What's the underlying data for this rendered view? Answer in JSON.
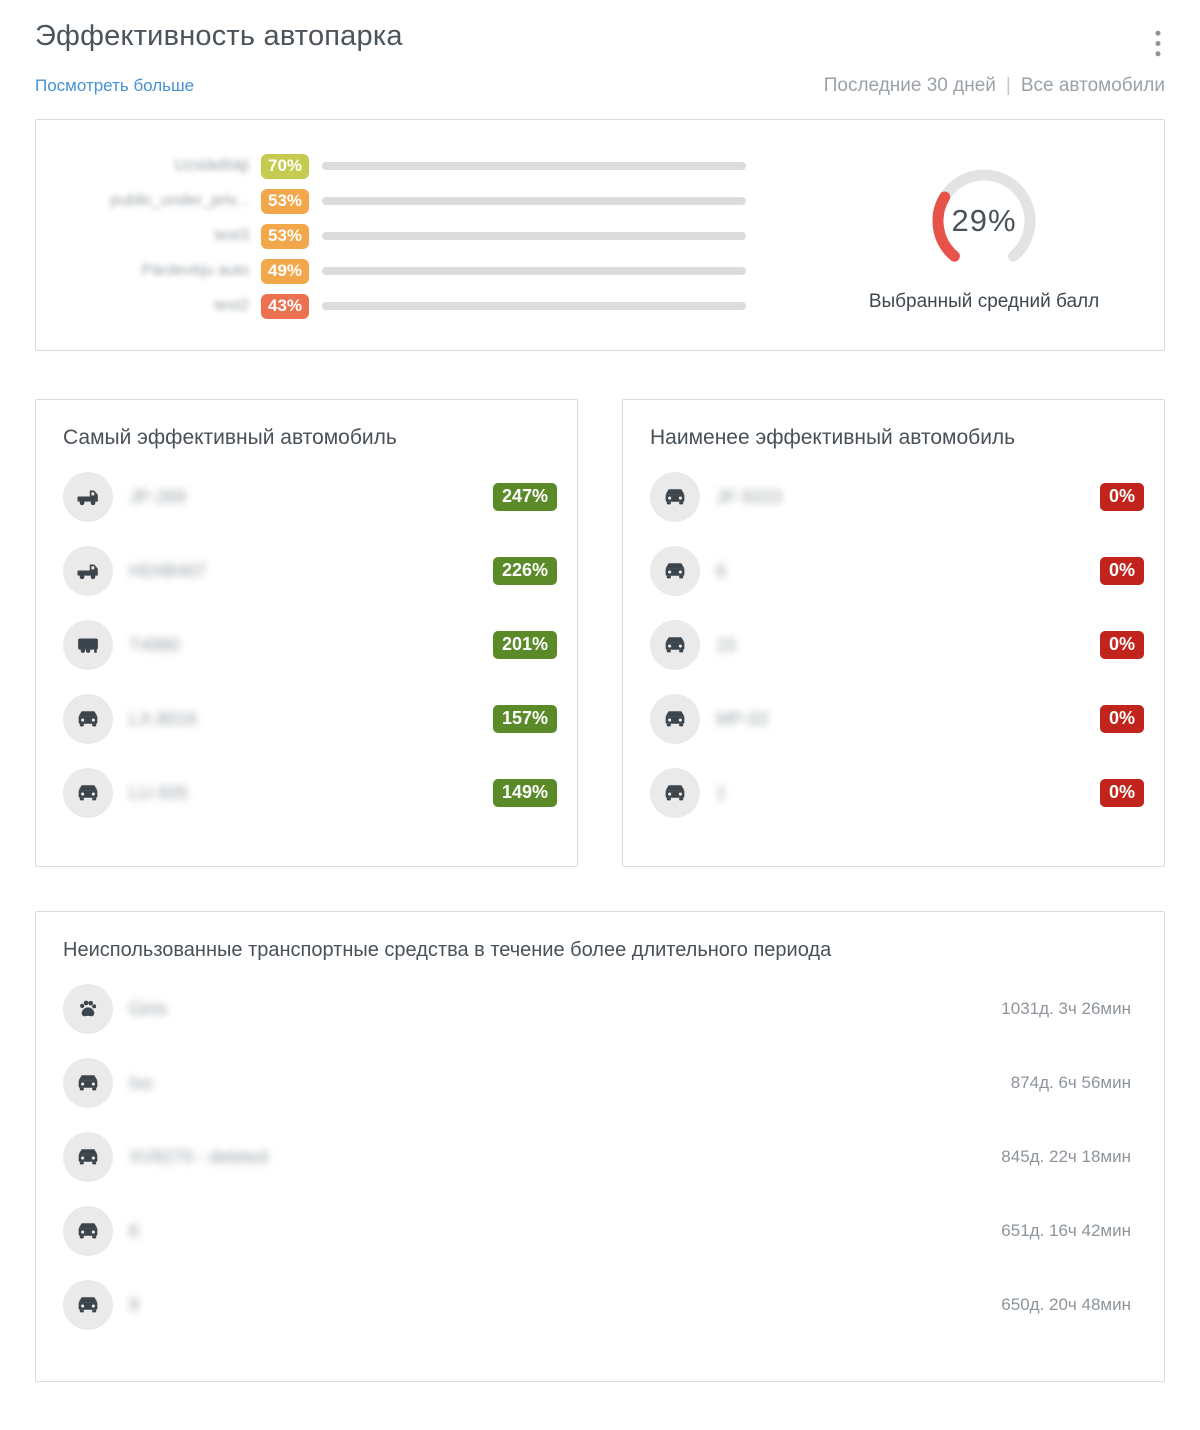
{
  "header": {
    "title": "Эффективность автопарка",
    "see_more": "Посмотреть больше",
    "period_filter": "Последние 30 дней",
    "separator": "|",
    "vehicle_filter": "Все автомобили"
  },
  "chart_data": {
    "type": "bar",
    "orientation": "horizontal",
    "unit": "%",
    "xlim": [
      0,
      100
    ],
    "categories": [
      "Uzstādītāji",
      "public_under_priv...",
      "test3",
      "Pārdevēju auto",
      "test2"
    ],
    "categories_blurred": true,
    "values": [
      70,
      53,
      53,
      49,
      43
    ],
    "colors": [
      "#c4cb4f",
      "#f2a74a",
      "#f2a74a",
      "#f2a74a",
      "#eb7150"
    ],
    "track_color": "#dcdcdc"
  },
  "gauge": {
    "percent": 29,
    "percent_label": "29%",
    "label": "Выбранный средний балл",
    "arc_color": "#e85349",
    "track_color": "#e3e3e5"
  },
  "most_efficient": {
    "title": "Самый эффективный автомобиль",
    "badge_color": "#5b8b28",
    "rows": [
      {
        "name": "JP-269",
        "icon": "truck-icon",
        "value": "247%"
      },
      {
        "name": "HD4B407",
        "icon": "truck-icon",
        "value": "226%"
      },
      {
        "name": "T4980",
        "icon": "trailer-icon",
        "value": "201%"
      },
      {
        "name": "LX-8016",
        "icon": "car-icon",
        "value": "157%"
      },
      {
        "name": "LU-505",
        "icon": "car-icon",
        "value": "149%"
      }
    ]
  },
  "least_efficient": {
    "title": "Наименее эффективный автомобиль",
    "badge_color": "#c0241c",
    "rows": [
      {
        "name": "JF-9333",
        "icon": "car-icon",
        "value": "0%"
      },
      {
        "name": "6",
        "icon": "car-icon",
        "value": "0%"
      },
      {
        "name": "15",
        "icon": "car-icon",
        "value": "0%"
      },
      {
        "name": "MP-02",
        "icon": "car-icon",
        "value": "0%"
      },
      {
        "name": "1",
        "icon": "car-icon",
        "value": "0%"
      }
    ]
  },
  "unused": {
    "title": "Неиспользованные транспортные средства в течение более длительного периода",
    "rows": [
      {
        "name": "Girts",
        "icon": "paw-icon",
        "duration": "1031д. 3ч 26мин"
      },
      {
        "name": "Iso",
        "icon": "car-icon",
        "duration": "874д. 6ч 56мин"
      },
      {
        "name": "XV8270 - deleted",
        "icon": "car-icon",
        "duration": "845д. 22ч 18мин"
      },
      {
        "name": "6",
        "icon": "car-icon",
        "duration": "651д. 16ч 42мин"
      },
      {
        "name": "9",
        "icon": "car-icon",
        "duration": "650д. 20ч 48мин"
      }
    ]
  }
}
